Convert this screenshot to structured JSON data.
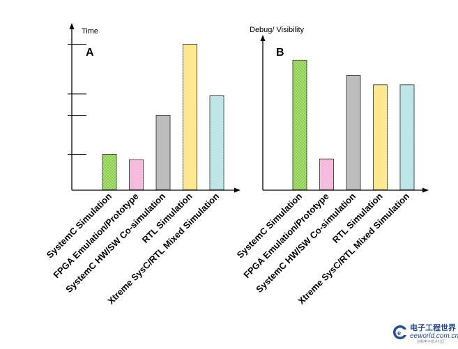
{
  "chart_data": [
    {
      "type": "bar",
      "panel": "A",
      "ylabel": "Time",
      "categories": [
        "SystemC Simulation",
        "FPGA Emulation/Prototype",
        "SystemC HW/SW Co-simulation",
        "RTL Simulation",
        "Xtreme SysC/RTL Mixed Simulation"
      ],
      "values": [
        1.0,
        0.85,
        2.1,
        4.1,
        2.65
      ],
      "ylim": [
        0,
        4.6
      ],
      "yticks": [
        1,
        2.1,
        2.7,
        4.1
      ],
      "grid": false,
      "colors": [
        "#8fd14f",
        "#f6b3d8",
        "#bdbdbd",
        "#ffe680",
        "#b8e3e6"
      ]
    },
    {
      "type": "bar",
      "panel": "B",
      "ylabel": "Debug/ Visibility",
      "categories": [
        "SystemC Simulation",
        "FPGA Emulation/Prototype",
        "SystemC HW/SW Co-simulation",
        "RTL Simulation",
        "Xtreme SysC/RTL Mixed Simulation"
      ],
      "values": [
        4.2,
        1.0,
        3.7,
        3.4,
        3.4
      ],
      "ylim": [
        0,
        5.2
      ],
      "grid": false,
      "colors": [
        "#8fd14f",
        "#f6b3d8",
        "#bdbdbd",
        "#ffe680",
        "#b8e3e6"
      ]
    }
  ],
  "watermark": {
    "brand_cn": "电子工程世界",
    "brand_en": "eeworld.com.cn",
    "sub": "创新电子技术社区",
    "logo": "ee-c-logo"
  }
}
